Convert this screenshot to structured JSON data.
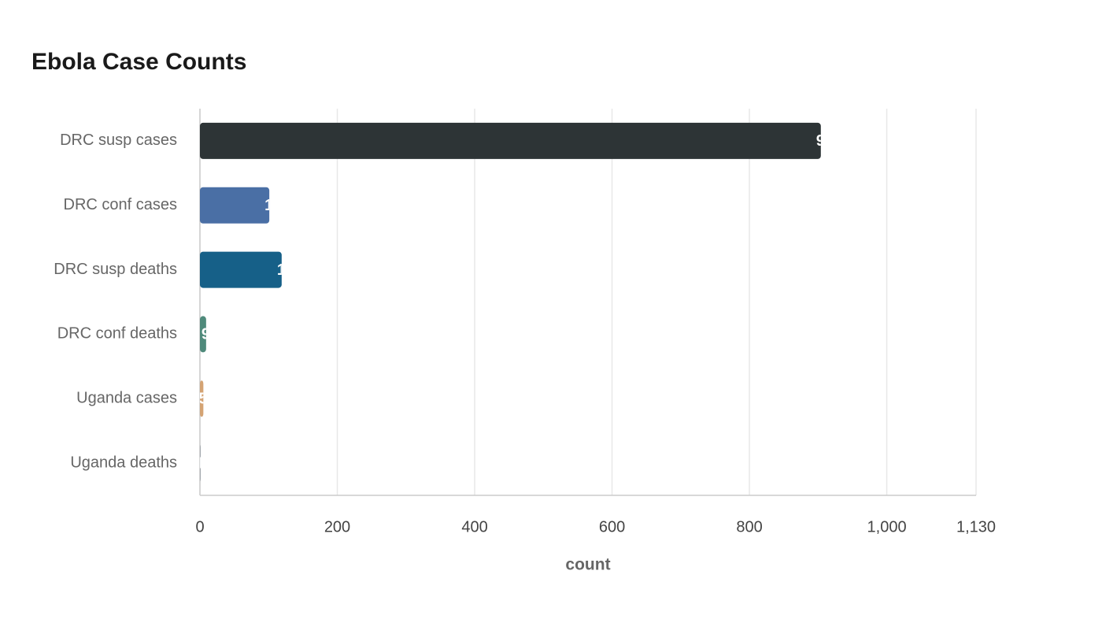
{
  "chart_data": {
    "type": "hbar",
    "title": "Ebola Case Counts",
    "categories": [
      "DRC susp cases",
      "DRC conf cases",
      "DRC susp deaths",
      "DRC conf deaths",
      "Uganda cases",
      "Uganda deaths"
    ],
    "values": [
      904,
      101,
      119,
      9,
      5,
      1
    ],
    "colors": [
      "#2d3436",
      "#4a6fa5",
      "#166088",
      "#4f8a7b",
      "#d4a373",
      "#9aa0a6"
    ],
    "xlabel": "count",
    "xlim": [
      0,
      1130
    ],
    "xticks": [
      0,
      200,
      400,
      600,
      800,
      {
        "value": 1000,
        "label": "1,000"
      },
      {
        "value": 1130,
        "label": "1,130"
      }
    ],
    "grid": true
  }
}
